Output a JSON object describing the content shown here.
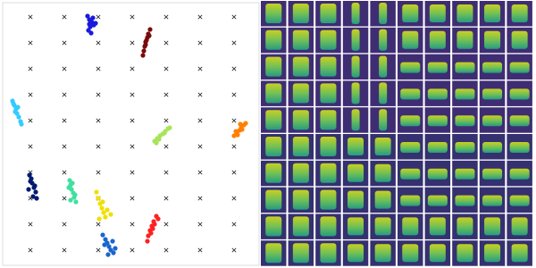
{
  "chart_data": {
    "type": "scatter",
    "xlim": [
      0,
      290
    ],
    "ylim": [
      0,
      300
    ],
    "marker_color": "#333333",
    "marker_x": [
      34,
      72,
      110,
      148,
      186,
      224,
      262
    ],
    "marker_y": [
      281,
      252,
      223,
      194,
      165,
      136,
      107,
      78,
      49,
      20
    ],
    "series": [
      {
        "color": "#1a1adc",
        "x": [
          98,
          100,
          103,
          101,
          105,
          99,
          104,
          102,
          107,
          100
        ],
        "y": [
          282,
          278,
          275,
          270,
          272,
          266,
          280,
          263,
          274,
          273
        ]
      },
      {
        "color": "#7a0a0a",
        "x": [
          168,
          166,
          165,
          163,
          162,
          161,
          164,
          167,
          160,
          163
        ],
        "y": [
          267,
          262,
          258,
          253,
          248,
          243,
          255,
          260,
          238,
          250
        ]
      },
      {
        "color": "#33ccff",
        "x": [
          14,
          16,
          18,
          19,
          21,
          23,
          17,
          20,
          24,
          15
        ],
        "y": [
          187,
          182,
          178,
          173,
          169,
          164,
          175,
          180,
          161,
          184
        ]
      },
      {
        "color": "#a8e45a",
        "x": [
          173,
          176,
          179,
          182,
          185,
          188,
          178,
          184,
          190,
          175
        ],
        "y": [
          142,
          145,
          148,
          150,
          153,
          156,
          144,
          151,
          157,
          140
        ]
      },
      {
        "color": "#ff8000",
        "x": [
          262,
          265,
          268,
          270,
          273,
          275,
          266,
          271,
          264,
          269
        ],
        "y": [
          148,
          151,
          154,
          157,
          160,
          162,
          149,
          155,
          153,
          161
        ]
      },
      {
        "color": "#001a70",
        "x": [
          33,
          35,
          36,
          38,
          40,
          37,
          34,
          39,
          32,
          41
        ],
        "y": [
          104,
          100,
          95,
          90,
          85,
          80,
          97,
          92,
          88,
          78
        ]
      },
      {
        "color": "#40e0a0",
        "x": [
          78,
          79,
          80,
          82,
          83,
          85,
          77,
          84,
          81,
          79
        ],
        "y": [
          98,
          93,
          88,
          84,
          79,
          74,
          90,
          82,
          95,
          76
        ]
      },
      {
        "color": "#f0e000",
        "x": [
          108,
          110,
          112,
          114,
          116,
          118,
          120,
          124,
          111,
          115
        ],
        "y": [
          85,
          78,
          72,
          67,
          62,
          57,
          65,
          60,
          55,
          74
        ]
      },
      {
        "color": "#ff2020",
        "x": [
          175,
          172,
          170,
          168,
          166,
          165,
          173,
          177,
          169,
          171
        ],
        "y": [
          58,
          52,
          47,
          42,
          36,
          30,
          49,
          55,
          39,
          44
        ]
      },
      {
        "color": "#1a66cc",
        "x": [
          115,
          118,
          120,
          122,
          124,
          127,
          117,
          126,
          121,
          129
        ],
        "y": [
          37,
          32,
          28,
          24,
          20,
          17,
          26,
          30,
          15,
          22
        ]
      }
    ]
  }
}
